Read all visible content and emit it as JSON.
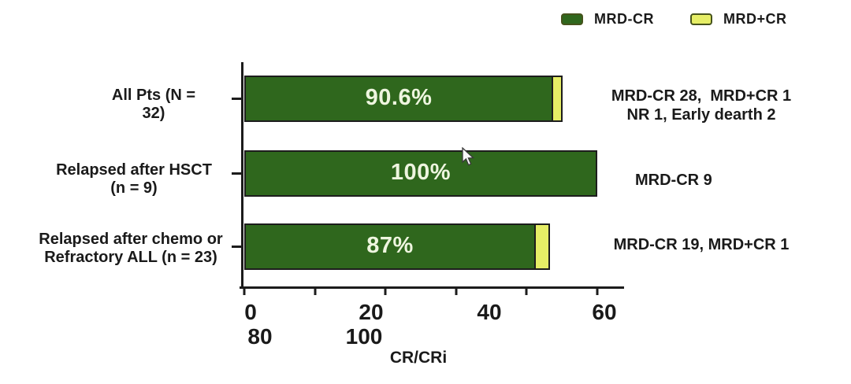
{
  "chart_data": {
    "type": "bar",
    "orientation": "horizontal",
    "title": "",
    "xlabel": "CR/CRi",
    "xlim": [
      0,
      100
    ],
    "grid": false,
    "legend_position": "top-right",
    "legend": [
      {
        "label": "MRD-CR",
        "color": "#2f671d"
      },
      {
        "label": "MRD+CR",
        "color": "#e6ee66"
      }
    ],
    "categories": [
      "All Pts (N = 32)",
      "Relapsed after HSCT (n = 9)",
      "Relapsed after chemo or Refractory ALL (n = 23)"
    ],
    "series": [
      {
        "name": "MRD-CR",
        "color": "#2f671d",
        "values": [
          87.5,
          100,
          82.6
        ]
      },
      {
        "name": "MRD+CR",
        "color": "#e6ee66",
        "values": [
          3.1,
          0,
          4.4
        ]
      }
    ],
    "bar_total_labels": [
      "90.6%",
      "100%",
      "87%"
    ],
    "x_ticks": [
      0,
      20,
      40,
      60,
      80,
      100
    ],
    "x_tick_label_rows": [
      [
        "0",
        "20",
        "40",
        "60"
      ],
      [
        "80",
        "100"
      ]
    ],
    "rows": [
      {
        "category_lines": [
          "All Pts (N =",
          "32)"
        ],
        "bar_label": "90.6%",
        "annotation_lines": [
          "MRD-CR 28,  MRD+CR 1",
          "NR 1, Early dearth 2"
        ]
      },
      {
        "category_lines": [
          "Relapsed after HSCT",
          "(n = 9)"
        ],
        "bar_label": "100%",
        "annotation_lines": [
          "MRD-CR 9"
        ]
      },
      {
        "category_lines": [
          "Relapsed after chemo or",
          "Refractory ALL (n = 23)"
        ],
        "bar_label": "87%",
        "annotation_lines": [
          "MRD-CR 19, MRD+CR 1"
        ]
      }
    ]
  }
}
